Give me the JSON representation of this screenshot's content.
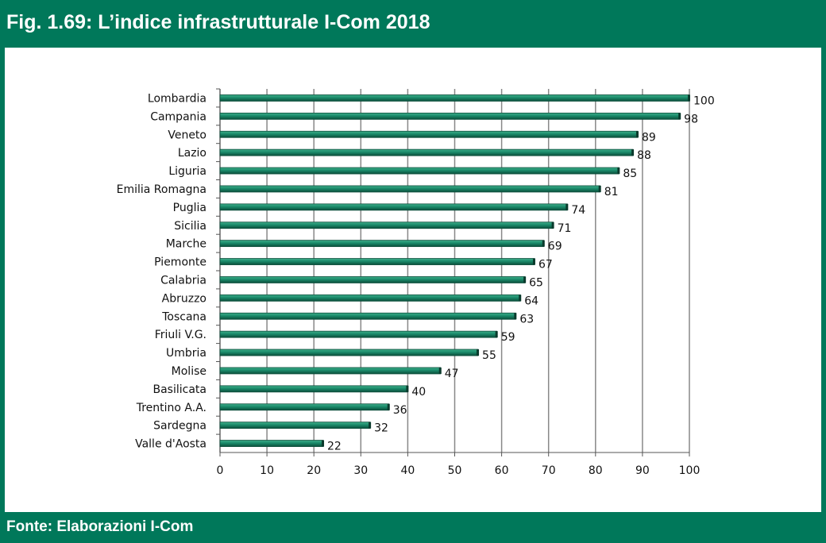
{
  "header": {
    "title": "Fig. 1.69: L’indice infrastrutturale I-Com 2018"
  },
  "footer": {
    "source": "Fonte: Elaborazioni I-Com"
  },
  "colors": {
    "brand": "#00785a",
    "bar": "#1a8a6a",
    "bar_dark": "#0d4f3c",
    "grid": "#888888"
  },
  "chart_data": {
    "type": "bar",
    "orientation": "horizontal",
    "title": "",
    "xlabel": "",
    "ylabel": "",
    "xlim": [
      0,
      100
    ],
    "x_ticks": [
      0,
      10,
      20,
      30,
      40,
      50,
      60,
      70,
      80,
      90,
      100
    ],
    "grid": "vertical",
    "categories": [
      "Lombardia",
      "Campania",
      "Veneto",
      "Lazio",
      "Liguria",
      "Emilia Romagna",
      "Puglia",
      "Sicilia",
      "Marche",
      "Piemonte",
      "Calabria",
      "Abruzzo",
      "Toscana",
      "Friuli V.G.",
      "Umbria",
      "Molise",
      "Basilicata",
      "Trentino A.A.",
      "Sardegna",
      "Valle d'Aosta"
    ],
    "values": [
      100,
      98,
      89,
      88,
      85,
      81,
      74,
      71,
      69,
      67,
      65,
      64,
      63,
      59,
      55,
      47,
      40,
      36,
      32,
      22
    ],
    "value_labels": [
      "100",
      "98",
      "89",
      "88",
      "85",
      "81",
      "74",
      "71",
      "69",
      "67",
      "65",
      "64",
      "63",
      "59",
      "55",
      "47",
      "40",
      "36",
      "32",
      "22"
    ]
  }
}
